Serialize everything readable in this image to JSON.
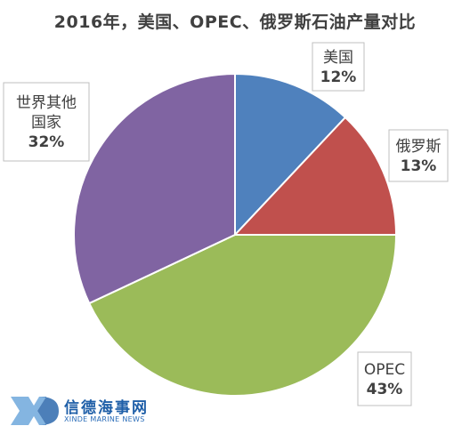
{
  "chart_data": {
    "type": "pie",
    "title": "2016年，美国、OPEC、俄罗斯石油产量对比",
    "slices": [
      {
        "label": "美国",
        "value": 12,
        "display": "12%",
        "color": "#4f81bd"
      },
      {
        "label": "俄罗斯",
        "value": 13,
        "display": "13%",
        "color": "#c0504d"
      },
      {
        "label": "OPEC",
        "value": 43,
        "display": "43%",
        "color": "#9bbb59"
      },
      {
        "label": "世界其他国家",
        "value": 32,
        "display": "32%",
        "color": "#8064a2"
      }
    ],
    "legend": "none",
    "data_labels": "callout"
  },
  "watermark": {
    "mark": "XD",
    "name": "信德海事网",
    "sub": "XINDE MARINE NEWS"
  }
}
